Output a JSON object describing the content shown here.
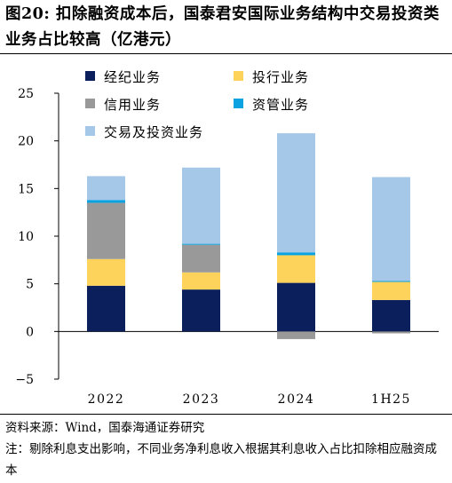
{
  "title": "图20:  扣除融资成本后，国泰君安国际业务结构中交易投资类业务占比较高（亿港元）",
  "source": "资料来源：Wind，国泰海通证券研究",
  "note": "注：剔除利息支出影响，不同业务净利息收入根据其利息收入占比扣除相应融资成本",
  "chart_data": {
    "type": "bar",
    "stacked": true,
    "categories": [
      "2022",
      "2023",
      "2024",
      "1H25"
    ],
    "ylim": [
      -5,
      25
    ],
    "yticks": [
      -5,
      0,
      5,
      10,
      15,
      20,
      25
    ],
    "legend_position": "top-left",
    "series": [
      {
        "name": "经纪业务",
        "color": "#0a1f5c",
        "values": [
          4.8,
          4.4,
          5.1,
          3.3
        ]
      },
      {
        "name": "投行业务",
        "color": "#fdd35c",
        "values": [
          2.8,
          1.8,
          2.9,
          1.9
        ]
      },
      {
        "name": "信用业务",
        "color": "#999999",
        "values": [
          5.9,
          2.9,
          -0.8,
          -0.2
        ]
      },
      {
        "name": "资管业务",
        "color": "#0aa2e0",
        "values": [
          0.3,
          0.1,
          0.3,
          0.1
        ]
      },
      {
        "name": "交易及投资业务",
        "color": "#a6c8e8",
        "values": [
          2.5,
          8.0,
          12.5,
          10.9
        ]
      }
    ]
  }
}
